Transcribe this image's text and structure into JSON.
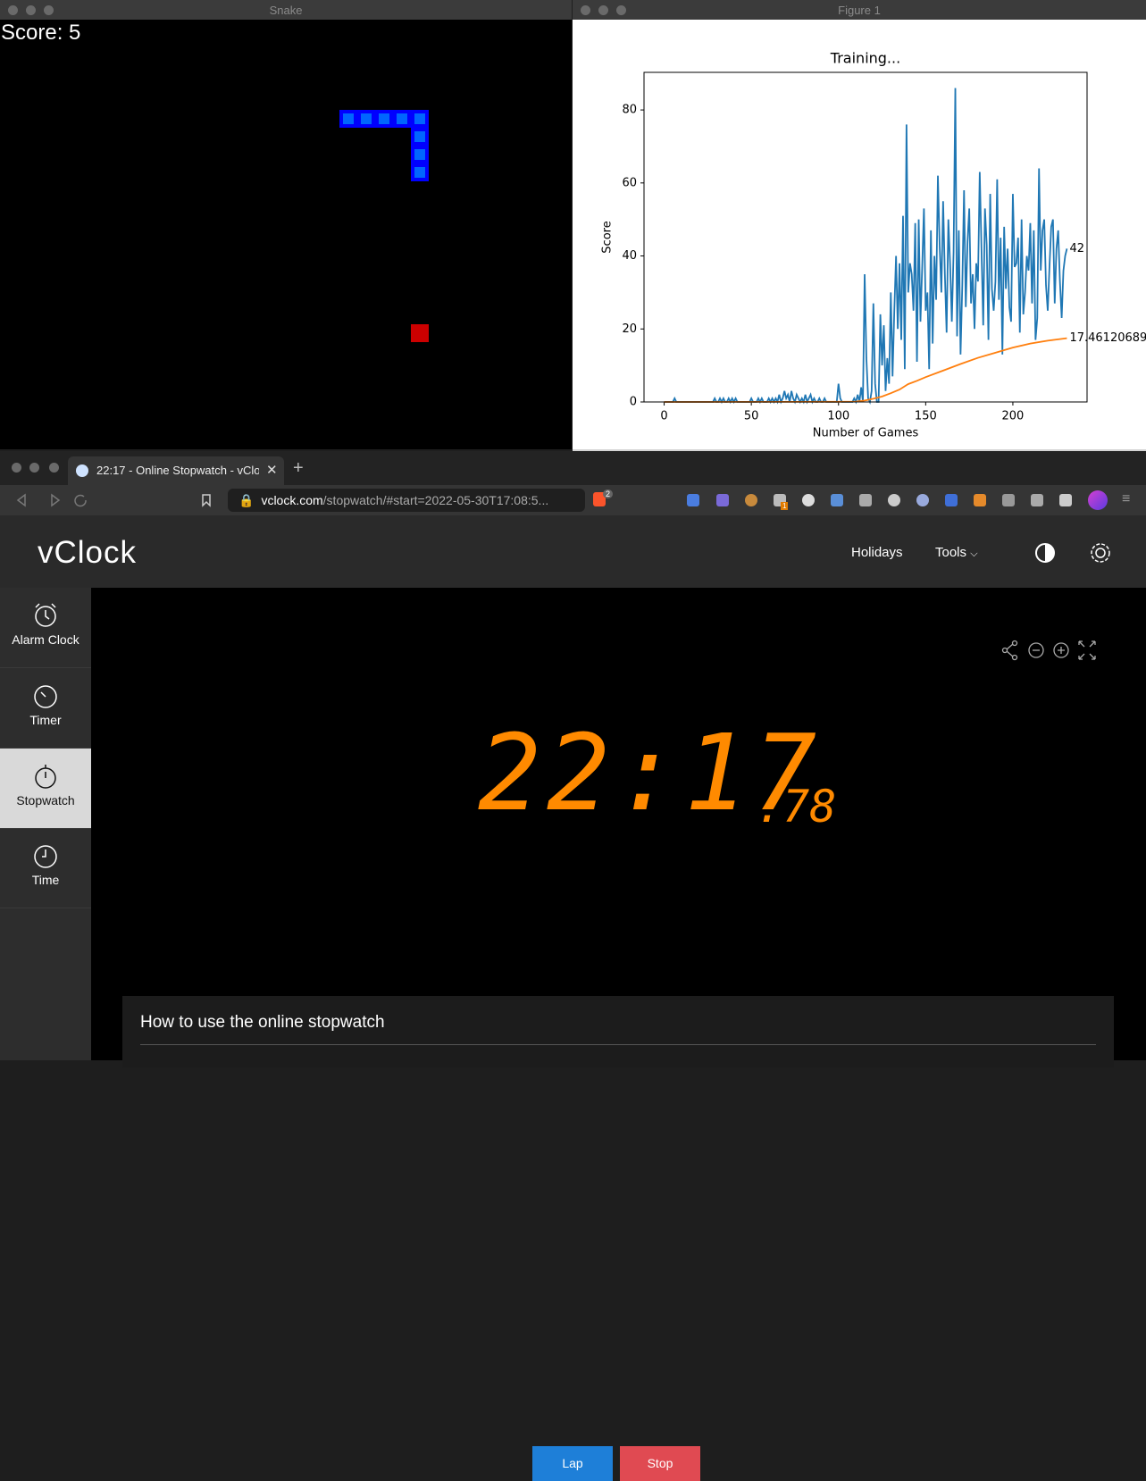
{
  "snake_window": {
    "title": "Snake",
    "score": "Score: 5"
  },
  "chart_data": {
    "type": "line",
    "window_title": "Figure 1",
    "title": "Training...",
    "xlabel": "Number of Games",
    "ylabel": "Score",
    "x": [
      0,
      1,
      2,
      3,
      4,
      5,
      6,
      7,
      8,
      9,
      10,
      11,
      12,
      13,
      14,
      15,
      16,
      17,
      18,
      19,
      20,
      21,
      22,
      23,
      24,
      25,
      26,
      27,
      28,
      29,
      30,
      31,
      32,
      33,
      34,
      35,
      36,
      37,
      38,
      39,
      40,
      41,
      42,
      43,
      44,
      45,
      46,
      47,
      48,
      49,
      50,
      51,
      52,
      53,
      54,
      55,
      56,
      57,
      58,
      59,
      60,
      61,
      62,
      63,
      64,
      65,
      66,
      67,
      68,
      69,
      70,
      71,
      72,
      73,
      74,
      75,
      76,
      77,
      78,
      79,
      80,
      81,
      82,
      83,
      84,
      85,
      86,
      87,
      88,
      89,
      90,
      91,
      92,
      93,
      94,
      95,
      96,
      97,
      98,
      99,
      100,
      101,
      102,
      103,
      104,
      105,
      106,
      107,
      108,
      109,
      110,
      111,
      112,
      113,
      114,
      115,
      116,
      117,
      118,
      119,
      120,
      121,
      122,
      123,
      124,
      125,
      126,
      127,
      128,
      129,
      130,
      131,
      132,
      133,
      134,
      135,
      136,
      137,
      138,
      139,
      140,
      141,
      142,
      143,
      144,
      145,
      146,
      147,
      148,
      149,
      150,
      151,
      152,
      153,
      154,
      155,
      156,
      157,
      158,
      159,
      160,
      161,
      162,
      163,
      164,
      165,
      166,
      167,
      168,
      169,
      170,
      171,
      172,
      173,
      174,
      175,
      176,
      177,
      178,
      179,
      180,
      181,
      182,
      183,
      184,
      185,
      186,
      187,
      188,
      189,
      190,
      191,
      192,
      193,
      194,
      195,
      196,
      197,
      198,
      199,
      200,
      201,
      202,
      203,
      204,
      205,
      206,
      207,
      208,
      209,
      210,
      211,
      212,
      213,
      214,
      215,
      216,
      217,
      218,
      219,
      220,
      221,
      222,
      223,
      224,
      225,
      226,
      227,
      228,
      229,
      230,
      231
    ],
    "series": [
      {
        "color": "#1f77b4",
        "values": [
          0,
          0,
          0,
          0,
          0,
          0,
          1,
          0,
          0,
          0,
          0,
          0,
          0,
          0,
          0,
          0,
          0,
          0,
          0,
          0,
          0,
          0,
          0,
          0,
          0,
          0,
          0,
          0,
          0,
          1,
          0,
          0,
          1,
          0,
          1,
          0,
          0,
          1,
          0,
          1,
          0,
          1,
          0,
          0,
          0,
          0,
          0,
          0,
          0,
          0,
          1,
          0,
          0,
          0,
          1,
          0,
          1,
          0,
          0,
          0,
          1,
          0,
          1,
          0,
          1,
          0,
          2,
          0,
          1,
          3,
          1,
          2,
          0,
          3,
          1,
          0,
          2,
          1,
          0,
          1,
          0,
          2,
          0,
          1,
          2,
          0,
          1,
          0,
          0,
          1,
          0,
          0,
          1,
          0,
          0,
          0,
          0,
          0,
          0,
          0,
          5,
          1,
          0,
          0,
          0,
          0,
          0,
          0,
          0,
          1,
          0,
          2,
          0,
          4,
          0,
          35,
          12,
          1,
          0,
          3,
          27,
          5,
          0,
          0,
          24,
          10,
          21,
          3,
          12,
          5,
          30,
          7,
          25,
          40,
          20,
          38,
          17,
          51,
          9,
          76,
          30,
          38,
          35,
          25,
          49,
          11,
          50,
          22,
          37,
          53,
          25,
          30,
          9,
          47,
          16,
          40,
          28,
          62,
          43,
          30,
          55,
          35,
          19,
          50,
          38,
          22,
          41,
          86,
          18,
          47,
          13,
          32,
          58,
          26,
          44,
          53,
          27,
          35,
          20,
          38,
          33,
          63,
          42,
          21,
          53,
          43,
          17,
          57,
          31,
          25,
          33,
          61,
          28,
          45,
          13,
          48,
          31,
          42,
          26,
          22,
          57,
          37,
          38,
          45,
          19,
          50,
          24,
          30,
          40,
          36,
          49,
          27,
          47,
          17,
          23,
          64,
          36,
          47,
          50,
          32,
          25,
          37,
          48,
          50,
          27,
          42,
          47,
          33,
          23,
          36,
          40,
          42
        ]
      },
      {
        "color": "#ff7f0e",
        "x": [
          0,
          100,
          110,
          115,
          120,
          125,
          130,
          135,
          140,
          145,
          150,
          160,
          170,
          180,
          190,
          200,
          210,
          220,
          231
        ],
        "values": [
          0,
          0.05,
          0.1,
          0.4,
          0.9,
          1.5,
          2.4,
          3.4,
          4.9,
          5.8,
          6.8,
          8.6,
          10.4,
          12.1,
          13.5,
          14.9,
          16.0,
          16.8,
          17.46120689655
        ]
      }
    ],
    "annotations": [
      {
        "text": "42",
        "x": 231,
        "y": 42
      },
      {
        "text": "17.46120689",
        "x": 231,
        "y": 17.46120689655
      }
    ],
    "xlim": [
      -11.55,
      242.55
    ],
    "ylim": [
      0,
      90.3
    ],
    "xticks": [
      0,
      50,
      100,
      150,
      200
    ],
    "yticks": [
      0,
      20,
      40,
      60,
      80
    ]
  },
  "browser": {
    "tab_title": "22:17 - Online Stopwatch - vClock",
    "url_host": "vclock.com",
    "url_path": "/stopwatch/#start=2022-05-30T17:08:5...",
    "shield_badge": "2",
    "extension_badge": "1"
  },
  "page": {
    "logo": "vClock",
    "nav": [
      "Holidays",
      "Tools"
    ],
    "sidebar": [
      "Alarm Clock",
      "Timer",
      "Stopwatch",
      "Time"
    ],
    "time": "22:17",
    "fraction": ".78",
    "buttons": [
      "Lap",
      "Stop"
    ],
    "section_title": "How to use the online stopwatch"
  }
}
